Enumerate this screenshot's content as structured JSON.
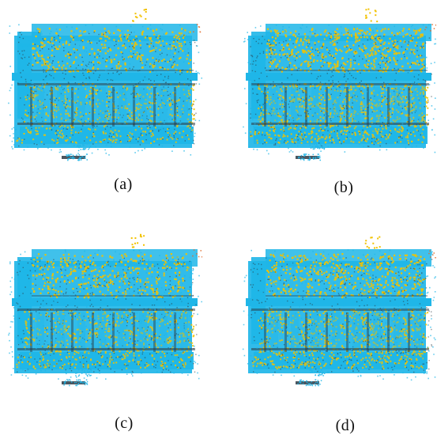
{
  "figure": {
    "panels": [
      {
        "id": "a",
        "caption": "(a)",
        "overlay_level": 0.35
      },
      {
        "id": "b",
        "caption": "(b)",
        "overlay_level": 0.55
      },
      {
        "id": "c",
        "caption": "(c)",
        "overlay_level": 0.4
      },
      {
        "id": "d",
        "caption": "(d)",
        "overlay_level": 0.5
      }
    ],
    "colors": {
      "reference_cloud": "#1fb6e8",
      "aligned_cloud": "#f2c200",
      "dark_points": "#2b3a44",
      "background": "#ffffff"
    }
  }
}
